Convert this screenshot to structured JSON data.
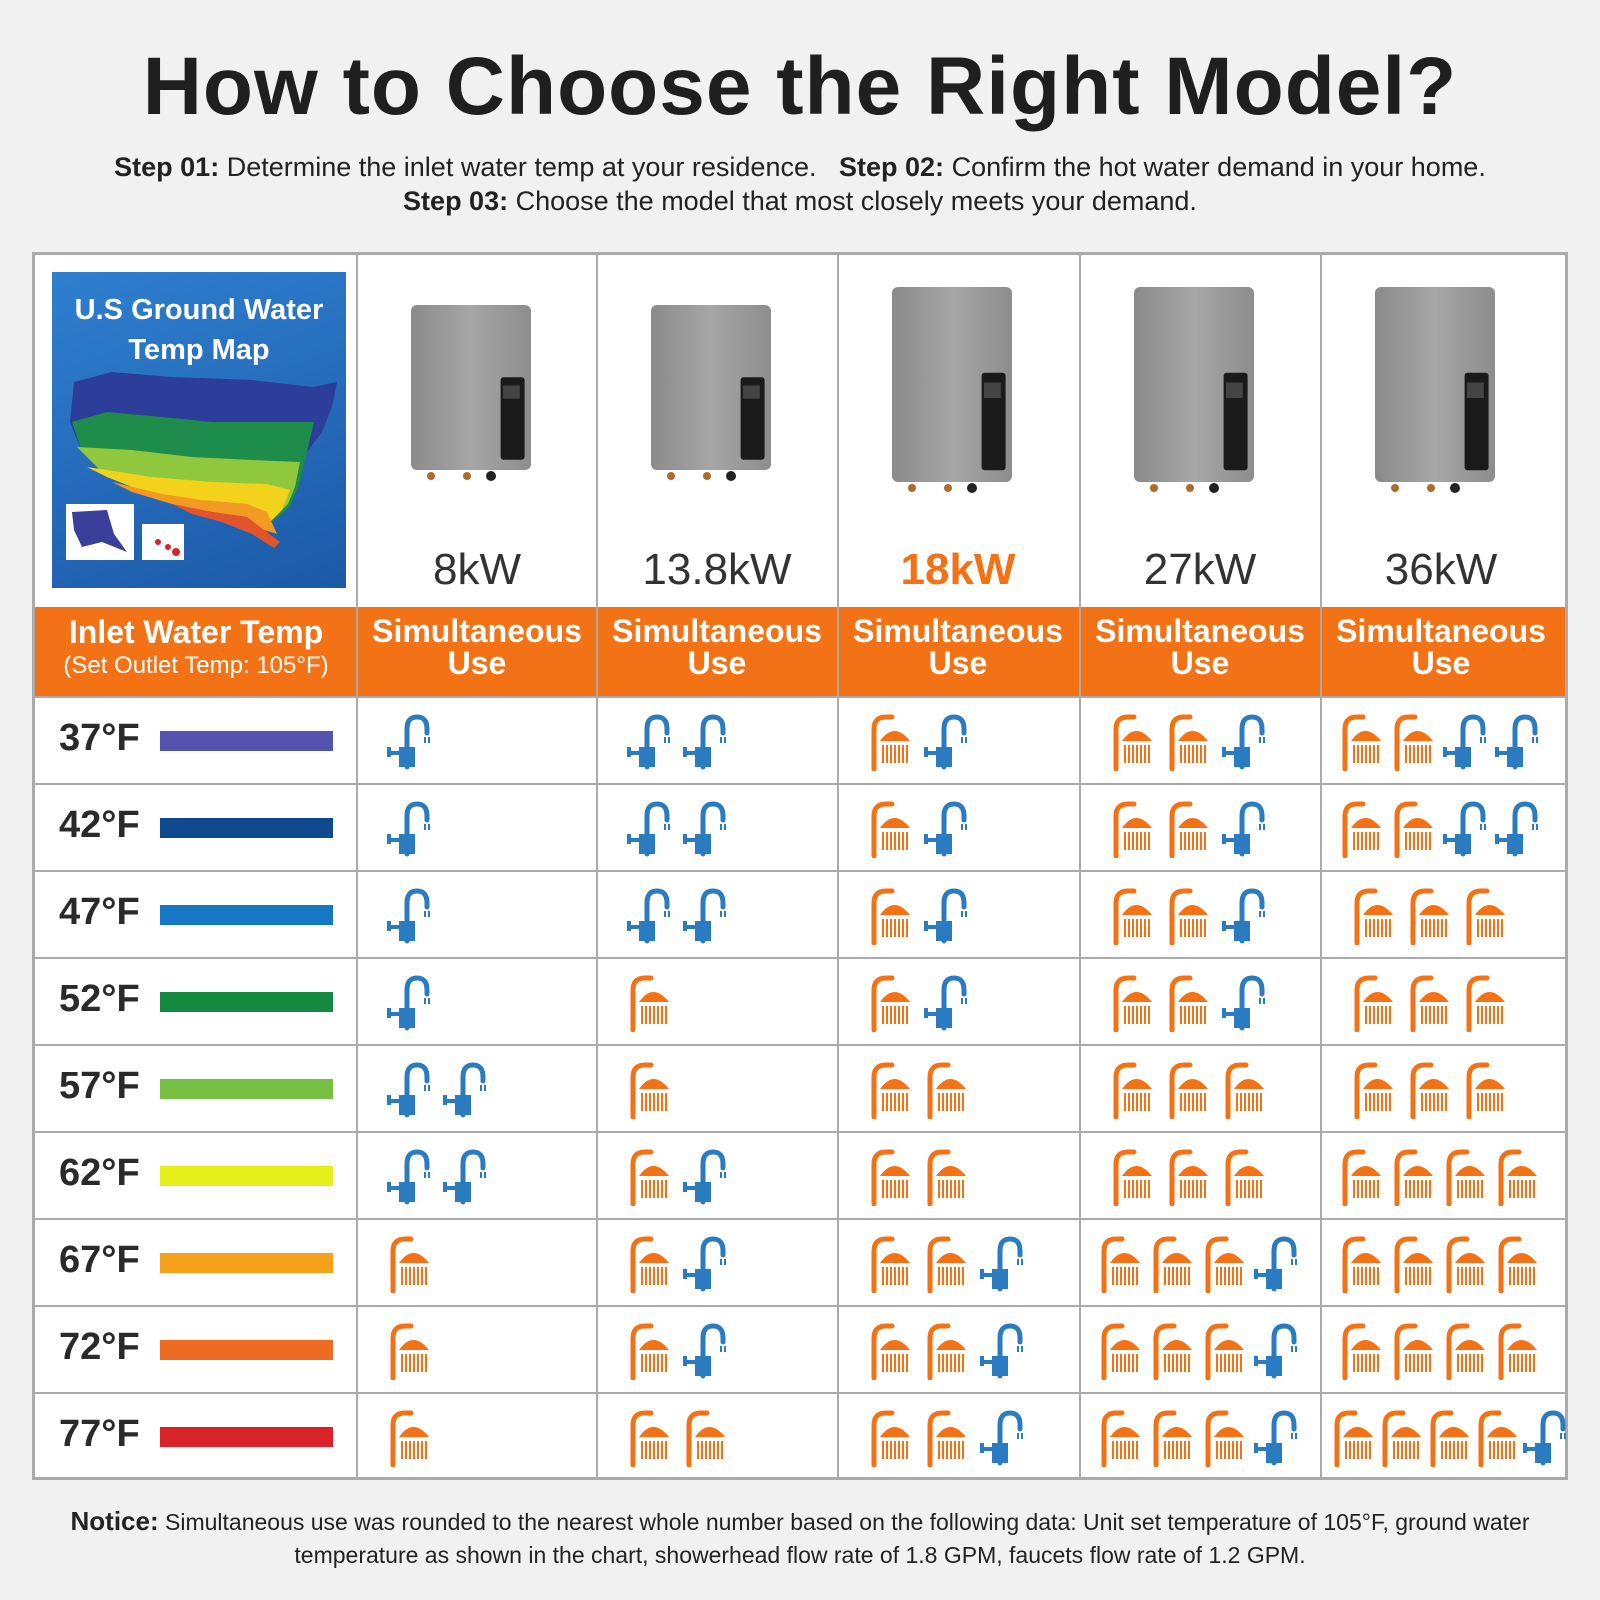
{
  "title": "How to Choose the Right Model?",
  "steps": {
    "step1_label": "Step 01:",
    "step1_text": " Determine the inlet water temp at your residence.",
    "step2_label": "Step 02:",
    "step2_text": " Confirm the hot water demand in your home.",
    "step3_label": "Step 03:",
    "step3_text": " Choose the model that most closely meets your demand."
  },
  "map": {
    "title_line1": "U.S Ground Water",
    "title_line2": "Temp Map"
  },
  "header": {
    "inlet_line1": "Inlet Water Temp",
    "inlet_line2": "(Set Outlet Temp: 105°F)",
    "sim_line1": "Simultaneous",
    "sim_line2": "Use"
  },
  "models": [
    {
      "label": "8kW",
      "highlight": false
    },
    {
      "label": "13.8kW",
      "highlight": false
    },
    {
      "label": "18kW",
      "highlight": true
    },
    {
      "label": "27kW",
      "highlight": false
    },
    {
      "label": "36kW",
      "highlight": false
    }
  ],
  "rows": [
    {
      "temp": "37°F",
      "color": "#5454b0",
      "uses": [
        [
          0,
          1
        ],
        [
          0,
          2
        ],
        [
          1,
          1
        ],
        [
          2,
          1
        ],
        [
          2,
          2
        ]
      ]
    },
    {
      "temp": "42°F",
      "color": "#0f4a8c",
      "uses": [
        [
          0,
          1
        ],
        [
          0,
          2
        ],
        [
          1,
          1
        ],
        [
          2,
          1
        ],
        [
          2,
          2
        ]
      ]
    },
    {
      "temp": "47°F",
      "color": "#1678c4",
      "uses": [
        [
          0,
          1
        ],
        [
          0,
          2
        ],
        [
          1,
          1
        ],
        [
          2,
          1
        ],
        [
          3,
          0
        ]
      ]
    },
    {
      "temp": "52°F",
      "color": "#138a3f",
      "uses": [
        [
          0,
          1
        ],
        [
          1,
          0
        ],
        [
          1,
          1
        ],
        [
          2,
          1
        ],
        [
          3,
          0
        ]
      ]
    },
    {
      "temp": "57°F",
      "color": "#77c043",
      "uses": [
        [
          0,
          2
        ],
        [
          1,
          0
        ],
        [
          2,
          0
        ],
        [
          3,
          0
        ],
        [
          3,
          0
        ]
      ]
    },
    {
      "temp": "62°F",
      "color": "#e5ef19",
      "uses": [
        [
          0,
          2
        ],
        [
          1,
          1
        ],
        [
          2,
          0
        ],
        [
          3,
          0
        ],
        [
          4,
          0
        ]
      ]
    },
    {
      "temp": "67°F",
      "color": "#f6a11c",
      "uses": [
        [
          1,
          0
        ],
        [
          1,
          1
        ],
        [
          2,
          1
        ],
        [
          3,
          1
        ],
        [
          4,
          0
        ]
      ]
    },
    {
      "temp": "72°F",
      "color": "#ef6a22",
      "uses": [
        [
          1,
          0
        ],
        [
          1,
          1
        ],
        [
          2,
          1
        ],
        [
          3,
          1
        ],
        [
          4,
          0
        ]
      ]
    },
    {
      "temp": "77°F",
      "color": "#d82429",
      "uses": [
        [
          1,
          0
        ],
        [
          2,
          0
        ],
        [
          2,
          1
        ],
        [
          3,
          1
        ],
        [
          4,
          1
        ]
      ]
    }
  ],
  "icon_legend": {
    "shower": "shower-icon",
    "faucet": "faucet-icon"
  },
  "colors": {
    "accent": "#f47216",
    "faucet": "#2b7bc0",
    "grid": "#aaaaaa"
  },
  "notice": {
    "label": "Notice:",
    "text": " Simultaneous use was rounded to the nearest whole number based on the following data: Unit set temperature of 105°F, ground water temperature as shown in the chart, showerhead flow rate of 1.8 GPM, faucets flow rate of 1.2 GPM."
  }
}
